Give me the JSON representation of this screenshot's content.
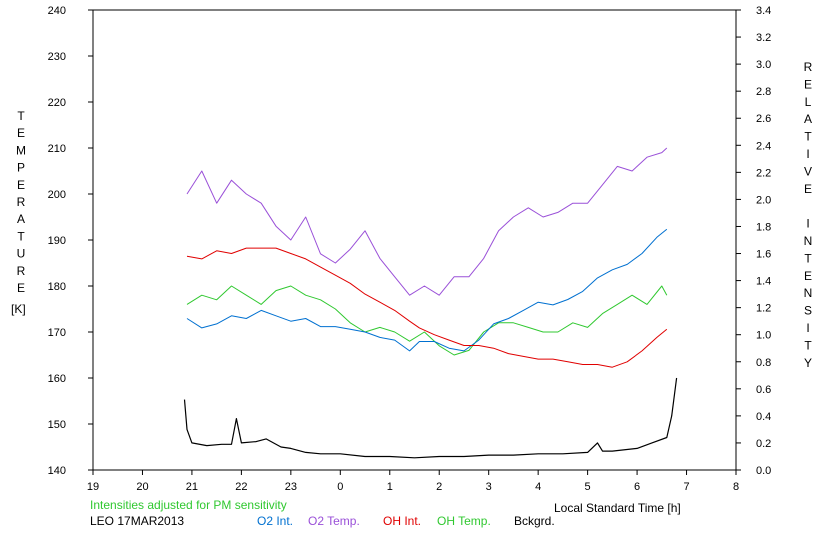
{
  "chart_data": {
    "type": "line",
    "left_axis_label": "TEMPERATURE",
    "left_axis_unit": "[K]",
    "right_axis_label": "RELATIVE INTENSITY",
    "xlabel": "Local Standard Time [h]",
    "note": "Intensities adjusted for PM sensitivity",
    "station": "LEO 17MAR2013",
    "x_ticks": [
      "19",
      "20",
      "21",
      "22",
      "23",
      "0",
      "1",
      "2",
      "3",
      "4",
      "5",
      "6",
      "7",
      "8"
    ],
    "x_range": [
      19,
      32
    ],
    "y_left_ticks": [
      "140",
      "150",
      "160",
      "170",
      "180",
      "190",
      "200",
      "210",
      "220",
      "230",
      "240"
    ],
    "y_left_range": [
      140,
      240
    ],
    "y_right_ticks": [
      "0.0",
      "0.2",
      "0.4",
      "0.6",
      "0.8",
      "1.0",
      "1.2",
      "1.4",
      "1.6",
      "1.8",
      "2.0",
      "2.2",
      "2.4",
      "2.6",
      "2.8",
      "3.0",
      "3.2",
      "3.4"
    ],
    "y_right_range": [
      0,
      3.4
    ],
    "series": [
      {
        "name": "O2 Int.",
        "axis": "right",
        "color": "#0070d0",
        "x": [
          20.9,
          21.2,
          21.5,
          21.8,
          22.1,
          22.4,
          22.7,
          23.0,
          23.3,
          23.6,
          23.9,
          24.2,
          24.5,
          24.8,
          25.1,
          25.4,
          25.6,
          25.9,
          26.2,
          26.5,
          26.8,
          27.1,
          27.4,
          27.7,
          28.0,
          28.3,
          28.6,
          28.9,
          29.2,
          29.5,
          29.8,
          30.1,
          30.4,
          30.6
        ],
        "y": [
          1.12,
          1.05,
          1.08,
          1.14,
          1.12,
          1.18,
          1.14,
          1.1,
          1.12,
          1.06,
          1.06,
          1.04,
          1.02,
          0.98,
          0.96,
          0.88,
          0.95,
          0.95,
          0.9,
          0.88,
          0.96,
          1.08,
          1.12,
          1.18,
          1.24,
          1.22,
          1.26,
          1.32,
          1.42,
          1.48,
          1.52,
          1.6,
          1.72,
          1.78
        ]
      },
      {
        "name": "O2 Temp.",
        "axis": "left",
        "color": "#9a50d8",
        "x": [
          20.9,
          21.2,
          21.5,
          21.8,
          22.1,
          22.4,
          22.7,
          23.0,
          23.3,
          23.6,
          23.9,
          24.2,
          24.5,
          24.8,
          25.1,
          25.4,
          25.7,
          26.0,
          26.3,
          26.6,
          26.9,
          27.2,
          27.5,
          27.8,
          28.1,
          28.4,
          28.7,
          29.0,
          29.3,
          29.6,
          29.9,
          30.2,
          30.5,
          30.6
        ],
        "y": [
          200,
          205,
          198,
          203,
          200,
          198,
          193,
          190,
          195,
          187,
          185,
          188,
          192,
          186,
          182,
          178,
          180,
          178,
          182,
          182,
          186,
          192,
          195,
          197,
          195,
          196,
          198,
          198,
          202,
          206,
          205,
          208,
          209,
          210
        ]
      },
      {
        "name": "OH Int.",
        "axis": "right",
        "color": "#e00000",
        "x": [
          20.9,
          21.2,
          21.5,
          21.8,
          22.1,
          22.4,
          22.7,
          23.0,
          23.3,
          23.6,
          23.9,
          24.2,
          24.5,
          24.8,
          25.1,
          25.4,
          25.6,
          25.9,
          26.2,
          26.5,
          26.8,
          27.1,
          27.4,
          27.7,
          28.0,
          28.3,
          28.6,
          28.9,
          29.2,
          29.5,
          29.8,
          30.1,
          30.4,
          30.6
        ],
        "y": [
          1.58,
          1.56,
          1.62,
          1.6,
          1.64,
          1.64,
          1.64,
          1.6,
          1.56,
          1.5,
          1.44,
          1.38,
          1.3,
          1.24,
          1.18,
          1.1,
          1.05,
          1.0,
          0.96,
          0.92,
          0.92,
          0.9,
          0.86,
          0.84,
          0.82,
          0.82,
          0.8,
          0.78,
          0.78,
          0.76,
          0.8,
          0.88,
          0.98,
          1.04
        ]
      },
      {
        "name": "OH Temp.",
        "axis": "left",
        "color": "#30c830",
        "x": [
          20.9,
          21.2,
          21.5,
          21.8,
          22.1,
          22.4,
          22.7,
          23.0,
          23.3,
          23.6,
          23.9,
          24.2,
          24.5,
          24.8,
          25.1,
          25.4,
          25.7,
          26.0,
          26.3,
          26.6,
          26.9,
          27.2,
          27.5,
          27.8,
          28.1,
          28.4,
          28.7,
          29.0,
          29.3,
          29.6,
          29.9,
          30.2,
          30.5,
          30.6
        ],
        "y": [
          176,
          178,
          177,
          180,
          178,
          176,
          179,
          180,
          178,
          177,
          175,
          172,
          170,
          171,
          170,
          168,
          170,
          167,
          165,
          166,
          170,
          172,
          172,
          171,
          170,
          170,
          172,
          171,
          174,
          176,
          178,
          176,
          180,
          178
        ]
      },
      {
        "name": "Bckgrd.",
        "axis": "right",
        "color": "#000000",
        "x": [
          20.85,
          20.9,
          21.0,
          21.3,
          21.6,
          21.8,
          21.9,
          22.0,
          22.3,
          22.5,
          22.8,
          23.0,
          23.3,
          23.6,
          24.0,
          24.5,
          25.0,
          25.5,
          26.0,
          26.5,
          27.0,
          27.5,
          28.0,
          28.5,
          29.0,
          29.2,
          29.3,
          29.5,
          30.0,
          30.3,
          30.6,
          30.7,
          30.8
        ],
        "y": [
          0.52,
          0.3,
          0.2,
          0.18,
          0.19,
          0.19,
          0.38,
          0.2,
          0.21,
          0.23,
          0.17,
          0.16,
          0.13,
          0.12,
          0.12,
          0.1,
          0.1,
          0.09,
          0.1,
          0.1,
          0.11,
          0.11,
          0.12,
          0.12,
          0.13,
          0.2,
          0.14,
          0.14,
          0.16,
          0.2,
          0.24,
          0.4,
          0.68
        ]
      }
    ]
  }
}
